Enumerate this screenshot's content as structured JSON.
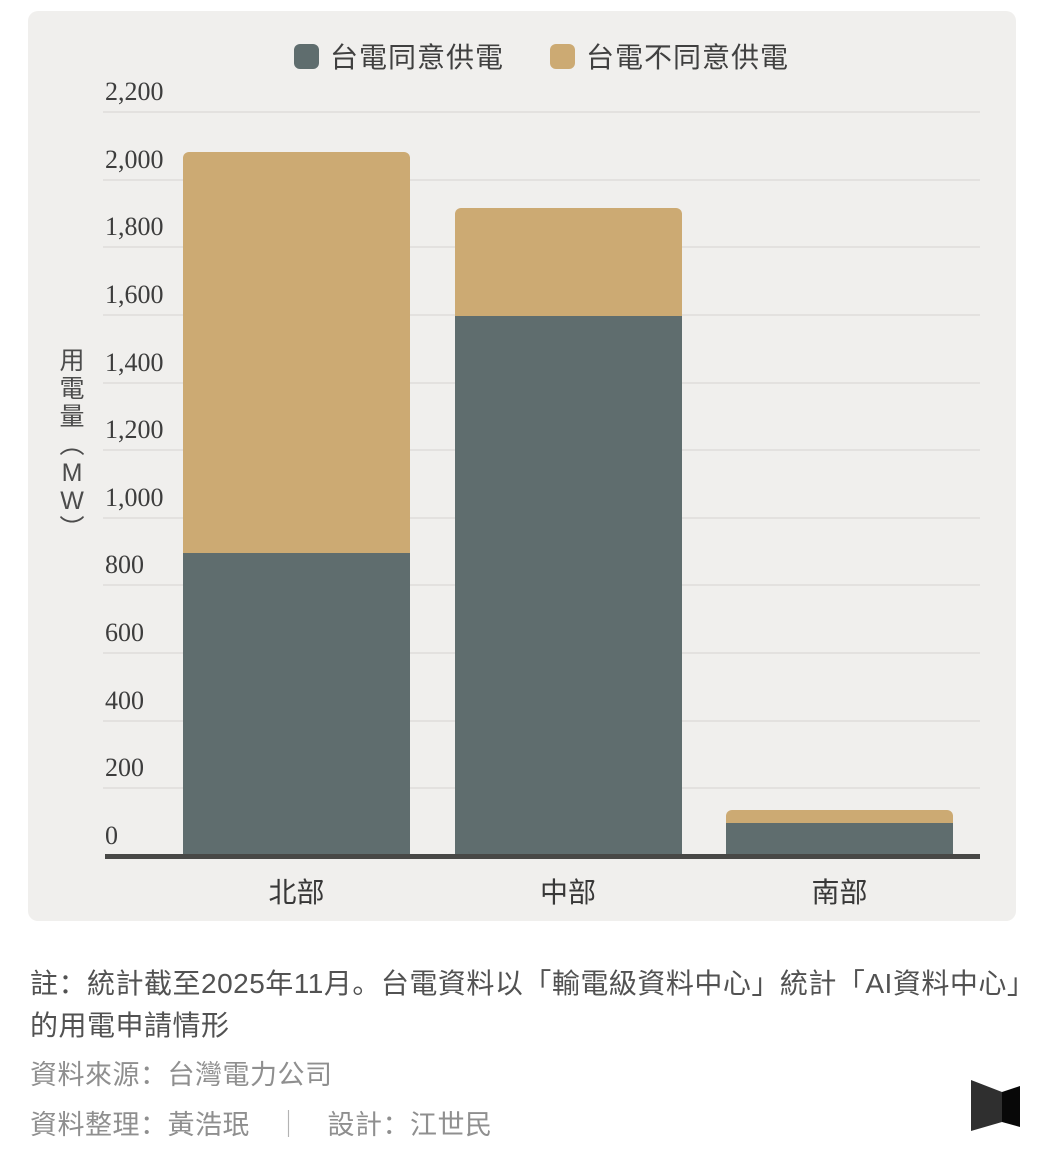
{
  "chart_data": {
    "type": "bar",
    "stacked": true,
    "categories": [
      "北部",
      "中部",
      "南部"
    ],
    "series": [
      {
        "name": "台電同意供電",
        "color": "#5f6d6e",
        "values": [
          900,
          1600,
          100
        ]
      },
      {
        "name": "台電不同意供電",
        "color": "#ccaa73",
        "values": [
          1185,
          320,
          40
        ]
      }
    ],
    "ylabel": "用電量（MW）",
    "ylabel_vertical_chars": [
      "用",
      "電",
      "量",
      "︵",
      "M",
      "W",
      "︶"
    ],
    "ylim": [
      0,
      2200
    ],
    "grid": true,
    "legend_position": "top",
    "yticks": [
      {
        "value": 0,
        "label": "0"
      },
      {
        "value": 200,
        "label": "200"
      },
      {
        "value": 400,
        "label": "400"
      },
      {
        "value": 600,
        "label": "600"
      },
      {
        "value": 800,
        "label": "800"
      },
      {
        "value": 1000,
        "label": "1,000"
      },
      {
        "value": 1200,
        "label": "1,200"
      },
      {
        "value": 1400,
        "label": "1,400"
      },
      {
        "value": 1600,
        "label": "1,600"
      },
      {
        "value": 1800,
        "label": "1,800"
      },
      {
        "value": 2000,
        "label": "2,000"
      },
      {
        "value": 2200,
        "label": "2,200"
      }
    ]
  },
  "footer": {
    "note_line1": "註：統計截至2025年11月。台電資料以「輸電級資料中心」統計「AI資料中心」",
    "note_line2": "的用電申請情形",
    "source": "資料來源：台灣電力公司",
    "credits_left": "資料整理：黃浩珉",
    "credits_separator": "｜",
    "credits_right": "設計：江世民"
  },
  "colors": {
    "panel_background": "#f0efed",
    "gridline": "#e3e1df",
    "axis_line": "#484846",
    "agree_bar": "#5f6d6e",
    "disagree_bar": "#ccaa73",
    "logo_left": "#2f2f2f",
    "logo_right": "#080808"
  }
}
